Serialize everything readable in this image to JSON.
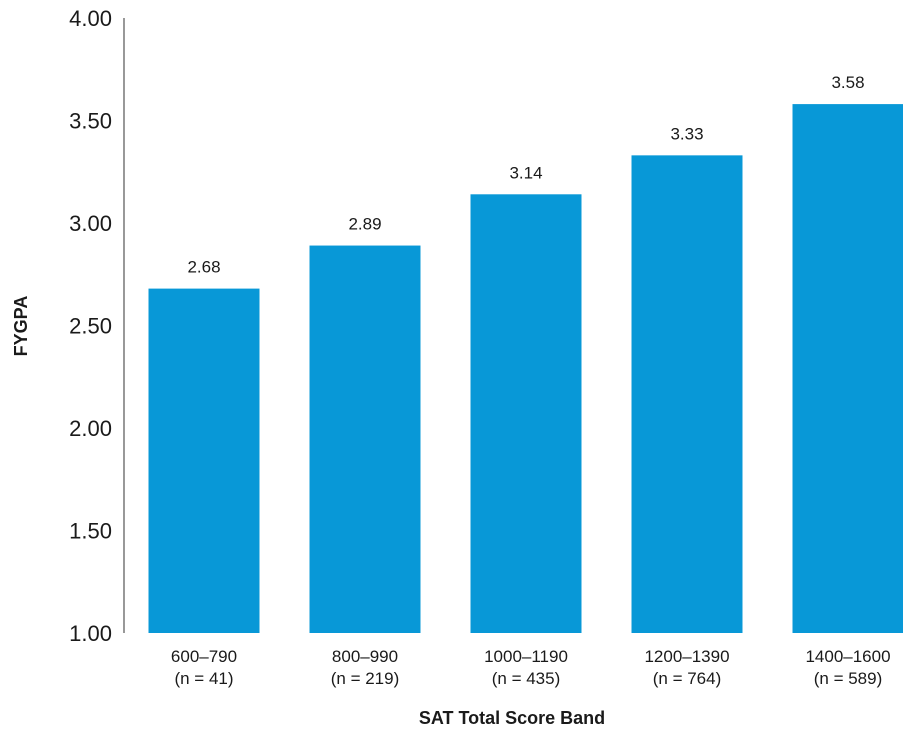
{
  "chart_data": {
    "type": "bar",
    "categories": [
      "600–790",
      "800–990",
      "1000–1190",
      "1200–1390",
      "1400–1600"
    ],
    "category_counts": [
      "(n = 41)",
      "(n = 219)",
      "(n = 435)",
      "(n = 764)",
      "(n = 589)"
    ],
    "values": [
      2.68,
      2.89,
      3.14,
      3.33,
      3.58
    ],
    "value_labels": [
      "2.68",
      "2.89",
      "3.14",
      "3.33",
      "3.58"
    ],
    "title": "",
    "xlabel": "SAT Total Score Band",
    "ylabel": "FYGPA",
    "ylim": [
      1.0,
      4.0
    ],
    "yticks": [
      "1.00",
      "1.50",
      "2.00",
      "2.50",
      "3.00",
      "3.50",
      "4.00"
    ],
    "grid": false,
    "bar_color": "#0898d7"
  }
}
